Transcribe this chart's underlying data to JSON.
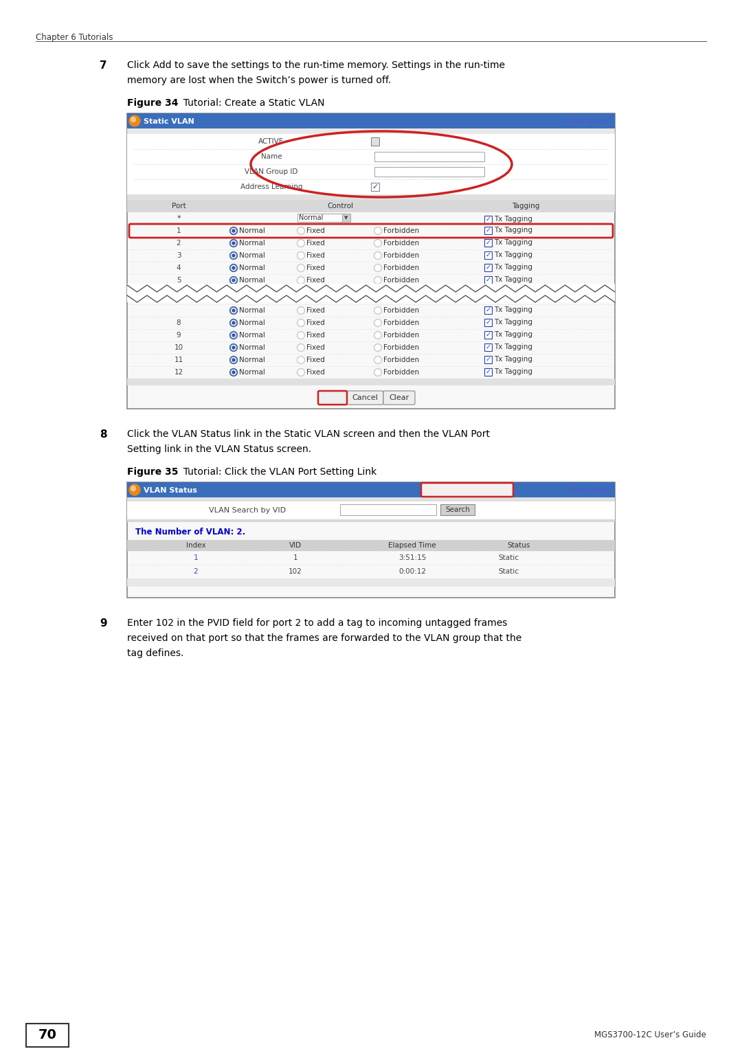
{
  "page_bg": "#ffffff",
  "header_text": "Chapter 6 Tutorials",
  "footer_page": "70",
  "footer_right": "MGS3700-12C User’s Guide",
  "step7_num": "7",
  "step7_text_line1": "Click Add to save the settings to the run-time memory. Settings in the run-time",
  "step7_text_line2": "memory are lost when the Switch’s power is turned off.",
  "fig34_label": "Figure 34",
  "fig34_title": "  Tutorial: Create a Static VLAN",
  "fig35_label": "Figure 35",
  "fig35_title": "  Tutorial: Click the VLAN Port Setting Link",
  "step8_num": "8",
  "step8_text_line1": "Click the VLAN Status link in the Static VLAN screen and then the VLAN Port",
  "step8_text_line2": "Setting link in the VLAN Status screen.",
  "step9_num": "9",
  "step9_text_line1": "Enter 102 in the PVID field for port 2 to add a tag to incoming untagged frames",
  "step9_text_line2": "received on that port so that the frames are forwarded to the VLAN group that the",
  "step9_text_line3": "tag defines.",
  "header_bar_color": "#3a6ebc",
  "orange_color": "#e8871a",
  "red_outline_color": "#cc2222",
  "link_blue": "#5555cc",
  "table_header_bg": "#d0d0d0",
  "table_row_separator": "#cccccc",
  "form_bg": "#ffffff",
  "screenshot_bg": "#f0f0f0",
  "screenshot_border": "#888888"
}
